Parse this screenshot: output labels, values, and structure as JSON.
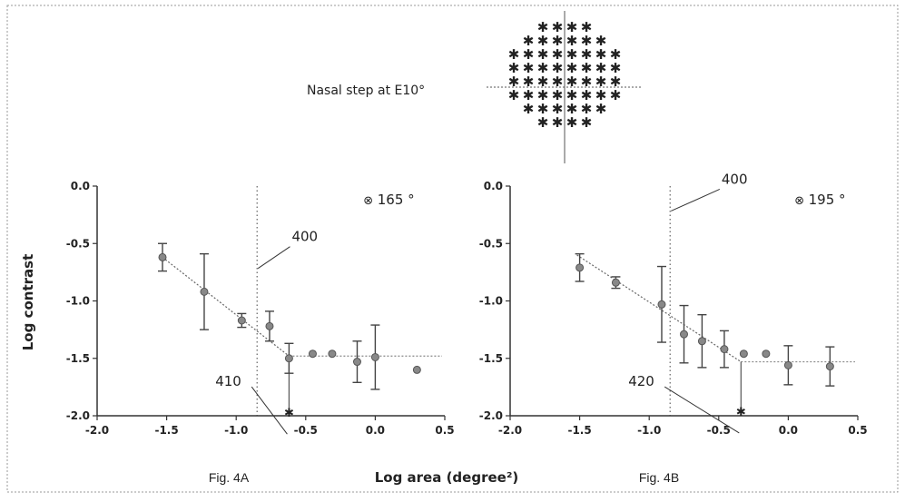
{
  "figure_title": "Nasal step at E10°",
  "x_axis_label": "Log area (degree²)",
  "y_axis_label": "Log contrast",
  "chart_data": [
    {
      "type": "scatter",
      "panel_label": "Fig. 4A",
      "xlim": [
        -2.0,
        0.5
      ],
      "ylim": [
        -2.0,
        0.0
      ],
      "x_ticks": [
        "-2.0",
        "-1.5",
        "-1.0",
        "-0.5",
        "0.0",
        "0.5"
      ],
      "y_ticks": [
        "0.0",
        "-0.5",
        "-1.0",
        "-1.5",
        "-2.0"
      ],
      "legend": {
        "symbol": "⊗",
        "text": "165 °"
      },
      "points": [
        {
          "x": -1.53,
          "y": -0.62,
          "err": 0.12
        },
        {
          "x": -1.23,
          "y": -0.92,
          "err": 0.33
        },
        {
          "x": -0.96,
          "y": -1.17,
          "err": 0.06
        },
        {
          "x": -0.76,
          "y": -1.22,
          "err": 0.13
        },
        {
          "x": -0.62,
          "y": -1.5,
          "err": 0.13
        },
        {
          "x": -0.45,
          "y": -1.46,
          "err": 0
        },
        {
          "x": -0.31,
          "y": -1.46,
          "err": 0
        },
        {
          "x": -0.13,
          "y": -1.53,
          "err": 0.18
        },
        {
          "x": 0.0,
          "y": -1.49,
          "err": 0.28
        },
        {
          "x": 0.3,
          "y": -1.6,
          "err": 0
        }
      ],
      "breakpoint_point": {
        "x": -0.62,
        "y": -1.97
      },
      "fit_line_sloped": [
        [
          -1.53,
          -0.62
        ],
        [
          -0.62,
          -1.48
        ]
      ],
      "fit_line_flat": [
        [
          -0.62,
          -1.48
        ],
        [
          0.48,
          -1.48
        ]
      ],
      "dotted_vertical_x": -0.85,
      "annotations": [
        {
          "text": "400",
          "x": -0.6,
          "y": -0.48
        },
        {
          "text": "410",
          "x": -1.15,
          "y": -1.74
        }
      ]
    },
    {
      "type": "scatter",
      "panel_label": "Fig. 4B",
      "xlim": [
        -2.0,
        0.5
      ],
      "ylim": [
        -2.0,
        0.0
      ],
      "x_ticks": [
        "-2.0",
        "-1.5",
        "-1.0",
        "-0.5",
        "0.0",
        "0.5"
      ],
      "y_ticks": [
        "0.0",
        "-0.5",
        "-1.0",
        "-1.5",
        "-2.0"
      ],
      "legend": {
        "symbol": "⊗",
        "text": "195 °"
      },
      "points": [
        {
          "x": -1.5,
          "y": -0.71,
          "err": 0.12
        },
        {
          "x": -1.24,
          "y": -0.84,
          "err": 0.05
        },
        {
          "x": -0.91,
          "y": -1.03,
          "err": 0.33
        },
        {
          "x": -0.75,
          "y": -1.29,
          "err": 0.25
        },
        {
          "x": -0.62,
          "y": -1.35,
          "err": 0.23
        },
        {
          "x": -0.46,
          "y": -1.42,
          "err": 0.16
        },
        {
          "x": -0.32,
          "y": -1.46,
          "err": 0
        },
        {
          "x": -0.16,
          "y": -1.46,
          "err": 0
        },
        {
          "x": 0.0,
          "y": -1.56,
          "err": 0.17
        },
        {
          "x": 0.3,
          "y": -1.57,
          "err": 0.17
        }
      ],
      "breakpoint_point": {
        "x": -0.34,
        "y": -1.96
      },
      "fit_line_sloped": [
        [
          -1.52,
          -0.6
        ],
        [
          -0.34,
          -1.53
        ]
      ],
      "fit_line_flat": [
        [
          -0.34,
          -1.53
        ],
        [
          0.48,
          -1.53
        ]
      ],
      "dotted_vertical_x": -0.85,
      "annotations": [
        {
          "text": "400",
          "x": -0.48,
          "y": 0.02
        },
        {
          "text": "420",
          "x": -1.15,
          "y": -1.74
        }
      ]
    }
  ]
}
